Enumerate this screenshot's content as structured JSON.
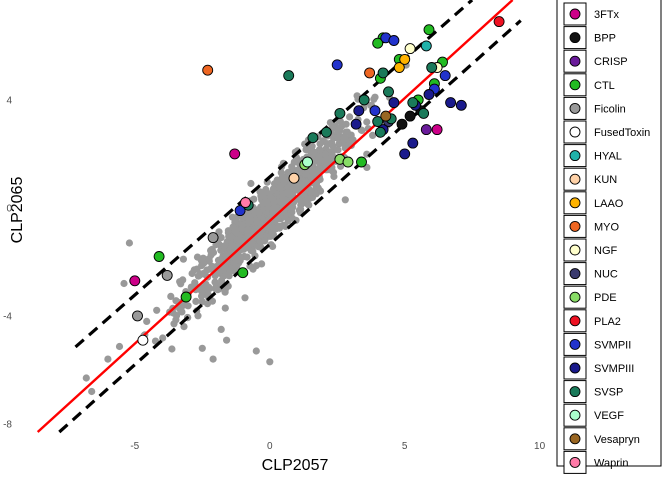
{
  "chart_data": {
    "type": "scatter",
    "title": "",
    "xlabel": "CLP2057",
    "ylabel": "CLP2065",
    "xlim": [
      -8.7,
      10.2
    ],
    "ylim": [
      -8.3,
      7.7
    ],
    "xticks": [
      -5,
      0,
      5,
      10
    ],
    "yticks": [
      -8,
      -4,
      0,
      4
    ],
    "grid": false,
    "legend_position": "right",
    "reference_lines": [
      {
        "type": "fit",
        "style": "solid",
        "color": "#ff0000",
        "slope": 1.03,
        "intercept": -0.35,
        "x_range": [
          -8.6,
          9.0
        ]
      },
      {
        "type": "upper-bound",
        "style": "dashed",
        "color": "#000000",
        "slope": 1.0,
        "intercept": 2.05,
        "x_range": [
          -7.2,
          7.5
        ]
      },
      {
        "type": "lower-bound",
        "style": "dashed",
        "color": "#000000",
        "slope": 1.02,
        "intercept": -2.55,
        "x_range": [
          -7.8,
          9.3
        ]
      }
    ],
    "background_points": {
      "color": "#999999",
      "note_count": 900,
      "core_slope": 1.0,
      "core_intercept": -0.2,
      "x_center": 0.0,
      "x_spread": 1.6
    },
    "background_outliers": [
      [
        -5.2,
        -1.3
      ],
      [
        -5.4,
        -2.8
      ],
      [
        -3.2,
        -1.9
      ],
      [
        -2.5,
        -5.2
      ],
      [
        -2.1,
        -5.6
      ],
      [
        -1.8,
        -4.5
      ],
      [
        -1.6,
        -4.9
      ],
      [
        -0.5,
        -5.3
      ],
      [
        0.0,
        -5.7
      ],
      [
        -1.8,
        -1.1
      ],
      [
        -6.8,
        -6.3
      ],
      [
        -6.6,
        -6.8
      ],
      [
        -2.0,
        -3.0
      ],
      [
        2.8,
        0.3
      ],
      [
        3.6,
        1.5
      ],
      [
        3.9,
        4.1
      ],
      [
        -6.0,
        -5.6
      ]
    ],
    "series": [
      {
        "name": "3FTx",
        "color": "#cc0088",
        "points": [
          [
            -5.0,
            -2.7
          ],
          [
            -1.3,
            2.0
          ],
          [
            6.2,
            2.9
          ]
        ]
      },
      {
        "name": "BPP",
        "color": "#111111",
        "points": [
          [
            4.9,
            3.1
          ],
          [
            5.2,
            3.4
          ],
          [
            5.6,
            3.6
          ]
        ]
      },
      {
        "name": "CRISP",
        "color": "#6a1b9a",
        "points": [
          [
            5.8,
            2.9
          ]
        ]
      },
      {
        "name": "CTL",
        "color": "#22bb22",
        "points": [
          [
            -4.1,
            -1.8
          ],
          [
            -3.1,
            -3.3
          ],
          [
            -1.0,
            -2.4
          ],
          [
            3.4,
            1.7
          ],
          [
            4.2,
            6.3
          ],
          [
            4.8,
            5.5
          ],
          [
            4.0,
            6.1
          ],
          [
            5.9,
            6.6
          ],
          [
            6.4,
            5.4
          ],
          [
            6.1,
            4.6
          ],
          [
            4.1,
            4.8
          ],
          [
            5.5,
            4.0
          ]
        ]
      },
      {
        "name": "Ficolin",
        "color": "#999999",
        "points": [
          [
            -4.9,
            -4.0
          ],
          [
            -3.8,
            -2.5
          ],
          [
            -2.1,
            -1.1
          ]
        ]
      },
      {
        "name": "FusedToxin",
        "color": "#ffffff",
        "points": [
          [
            -4.7,
            -4.9
          ]
        ]
      },
      {
        "name": "HYAL",
        "color": "#20b2aa",
        "points": [
          [
            5.8,
            6.0
          ]
        ]
      },
      {
        "name": "KUN",
        "color": "#ffd2a8",
        "points": [
          [
            0.9,
            1.1
          ]
        ]
      },
      {
        "name": "LAAO",
        "color": "#ffb300",
        "points": [
          [
            4.8,
            5.2
          ],
          [
            5.0,
            5.5
          ]
        ]
      },
      {
        "name": "MYO",
        "color": "#ee6622",
        "points": [
          [
            -2.3,
            5.1
          ],
          [
            3.7,
            5.0
          ]
        ]
      },
      {
        "name": "NGF",
        "color": "#ffffcc",
        "points": [
          [
            5.2,
            5.9
          ],
          [
            6.2,
            5.2
          ]
        ]
      },
      {
        "name": "NUC",
        "color": "#3a3a6e",
        "points": [
          [
            4.4,
            3.2
          ]
        ]
      },
      {
        "name": "PDE",
        "color": "#88dd66",
        "points": [
          [
            1.3,
            1.6
          ],
          [
            2.6,
            1.8
          ],
          [
            2.9,
            1.7
          ]
        ]
      },
      {
        "name": "PLA2",
        "color": "#ee1122",
        "points": [
          [
            8.5,
            6.9
          ]
        ]
      },
      {
        "name": "SVMPII",
        "color": "#2233cc",
        "points": [
          [
            -1.1,
            -0.1
          ],
          [
            2.5,
            5.3
          ],
          [
            4.3,
            6.3
          ],
          [
            4.6,
            6.2
          ],
          [
            6.1,
            4.4
          ],
          [
            6.5,
            4.9
          ],
          [
            3.9,
            3.6
          ]
        ]
      },
      {
        "name": "SVMPIII",
        "color": "#1a1a8c",
        "points": [
          [
            3.2,
            3.1
          ],
          [
            3.3,
            3.6
          ],
          [
            4.2,
            2.9
          ],
          [
            5.3,
            2.4
          ],
          [
            6.7,
            3.9
          ],
          [
            7.1,
            3.8
          ],
          [
            5.0,
            2.0
          ],
          [
            5.4,
            3.8
          ],
          [
            5.9,
            4.2
          ],
          [
            4.6,
            3.9
          ]
        ]
      },
      {
        "name": "SVSP",
        "color": "#1a7a5a",
        "points": [
          [
            -0.8,
            0.1
          ],
          [
            0.7,
            4.9
          ],
          [
            1.6,
            2.6
          ],
          [
            2.1,
            2.8
          ],
          [
            2.6,
            3.5
          ],
          [
            3.5,
            4.0
          ],
          [
            4.0,
            3.2
          ],
          [
            4.2,
            5.0
          ],
          [
            4.4,
            4.3
          ],
          [
            6.0,
            5.2
          ],
          [
            4.5,
            3.3
          ],
          [
            4.1,
            2.8
          ],
          [
            5.7,
            3.5
          ],
          [
            5.3,
            3.9
          ]
        ]
      },
      {
        "name": "VEGF",
        "color": "#aaffcc",
        "points": [
          [
            1.4,
            1.7
          ]
        ]
      },
      {
        "name": "Vesapryn",
        "color": "#996622",
        "points": [
          [
            4.3,
            3.4
          ]
        ]
      },
      {
        "name": "Waprin",
        "color": "#ff7aa8",
        "points": [
          [
            -0.9,
            0.2
          ]
        ]
      }
    ]
  }
}
